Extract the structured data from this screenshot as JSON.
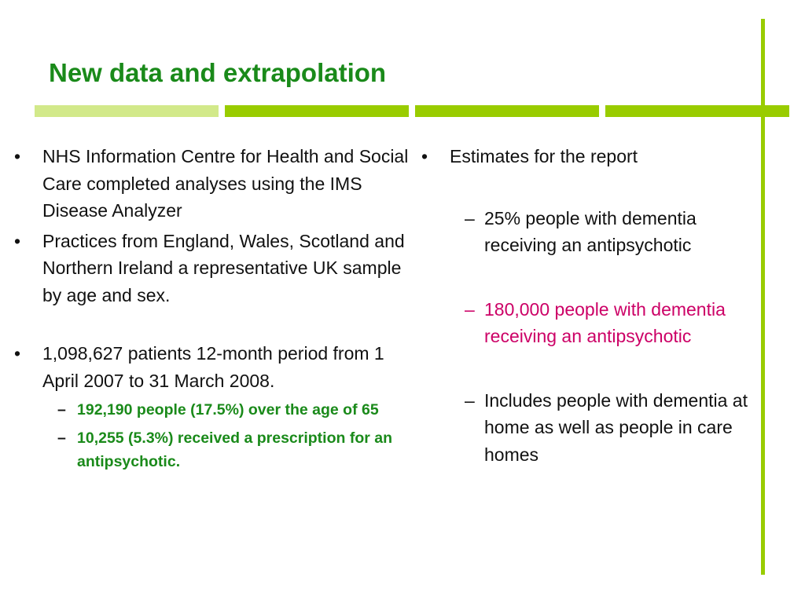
{
  "slide": {
    "title": "New data and extrapolation"
  },
  "colors": {
    "title": "#1a8a1a",
    "accent_bar": "#99cc00",
    "accent_bar_light": "#d2e98a",
    "highlight_pink": "#cc0066",
    "body_text": "#111111"
  },
  "left": {
    "bullets": [
      {
        "marker": "•",
        "text": "NHS Information Centre for Health and Social Care completed analyses using the IMS Disease Analyzer"
      },
      {
        "marker": "•",
        "text": "Practices from England, Wales, Scotland and Northern Ireland a representative UK sample by age and sex."
      },
      {
        "marker": "•",
        "text": "1,098,627 patients 12-month period from 1 April 2007 to 31 March 2008."
      }
    ],
    "sub_bullets": [
      {
        "marker": "–",
        "text": "192,190 people (17.5%) over the age of 65"
      },
      {
        "marker": "–",
        "text": "10,255 (5.3%) received a prescription for an antipsychotic."
      }
    ]
  },
  "right": {
    "bullet": {
      "marker": "•",
      "text": "Estimates for the report"
    },
    "sub_bullets": [
      {
        "marker": "–",
        "text": "25% people with dementia receiving an antipsychotic"
      },
      {
        "marker": "–",
        "text": "180,000 people with dementia receiving an antipsychotic"
      },
      {
        "marker": "–",
        "text": "Includes people with dementia at home as well as people in care homes"
      }
    ]
  }
}
